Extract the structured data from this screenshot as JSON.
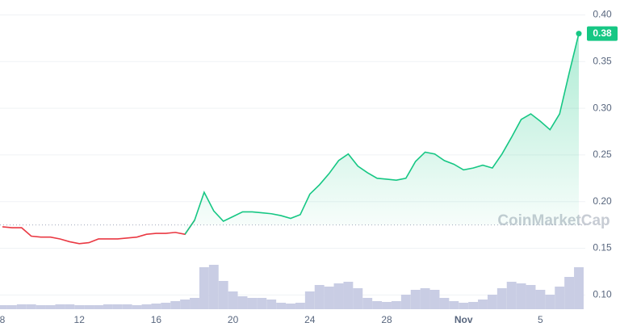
{
  "chart_data": {
    "type": "line",
    "categories": [
      "8",
      null,
      null,
      null,
      null,
      null,
      null,
      null,
      "12",
      null,
      null,
      null,
      null,
      null,
      null,
      null,
      "16",
      null,
      null,
      null,
      null,
      null,
      null,
      null,
      "20",
      null,
      null,
      null,
      null,
      null,
      null,
      null,
      "24",
      null,
      null,
      null,
      null,
      null,
      null,
      null,
      "28",
      null,
      null,
      null,
      null,
      null,
      null,
      null,
      "Nov",
      null,
      null,
      null,
      null,
      null,
      null,
      null,
      "5",
      null,
      null,
      null,
      null
    ],
    "values": [
      0.173,
      0.172,
      0.172,
      0.163,
      0.162,
      0.162,
      0.16,
      0.157,
      0.155,
      0.156,
      0.16,
      0.16,
      0.16,
      0.161,
      0.162,
      0.165,
      0.166,
      0.166,
      0.167,
      0.165,
      0.18,
      0.21,
      0.19,
      0.179,
      0.184,
      0.189,
      0.189,
      0.188,
      0.187,
      0.185,
      0.182,
      0.186,
      0.208,
      0.218,
      0.23,
      0.244,
      0.251,
      0.238,
      0.231,
      0.225,
      0.224,
      0.223,
      0.225,
      0.243,
      0.253,
      0.251,
      0.244,
      0.24,
      0.234,
      0.236,
      0.239,
      0.236,
      0.251,
      0.269,
      0.288,
      0.294,
      0.286,
      0.277,
      0.294,
      0.338,
      0.38
    ],
    "volume": [
      5,
      5,
      6,
      6,
      5,
      5,
      6,
      6,
      5,
      5,
      5,
      6,
      6,
      6,
      5,
      6,
      7,
      8,
      10,
      12,
      14,
      52,
      55,
      35,
      22,
      16,
      14,
      14,
      12,
      8,
      7,
      8,
      22,
      30,
      28,
      32,
      34,
      26,
      14,
      10,
      9,
      10,
      18,
      24,
      26,
      24,
      14,
      10,
      8,
      9,
      12,
      18,
      26,
      34,
      32,
      30,
      24,
      18,
      28,
      40,
      52
    ],
    "baseline": 0.175,
    "up_color": "#16c784",
    "down_color": "#ea3943",
    "volume_color": "#c9cde4",
    "ylim": [
      0.083,
      0.416
    ],
    "yticks": [
      {
        "value": 0.1,
        "label": "0.10"
      },
      0.15,
      {
        "value": 0.2,
        "label": "0.20"
      },
      0.25,
      {
        "value": 0.3,
        "label": "0.30"
      },
      0.35,
      {
        "value": 0.4,
        "label": "0.40"
      }
    ],
    "grid": true,
    "watermark": "CoinMarketCap"
  }
}
